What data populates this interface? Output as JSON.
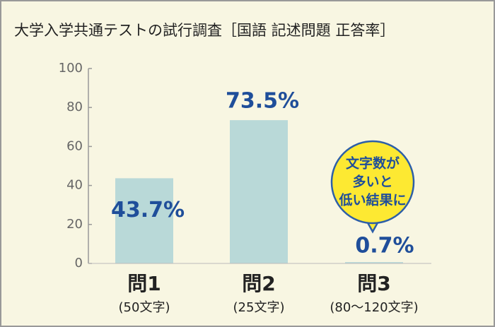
{
  "chart_data": {
    "type": "bar",
    "title": "大学入学共通テストの試行調査［国語 記述問題 正答率］",
    "categories": [
      "問1",
      "問2",
      "問3"
    ],
    "subcategories": [
      "(50文字)",
      "(25文字)",
      "(80〜120文字)"
    ],
    "values": [
      43.7,
      73.5,
      0.7
    ],
    "value_labels": [
      "43.7%",
      "73.5%",
      "0.7%"
    ],
    "color": "#b9d9d8",
    "ylim": [
      0,
      100
    ],
    "yticks": [
      0,
      20,
      40,
      60,
      80,
      100
    ],
    "annotation": [
      "文字数が",
      "多いと",
      "低い結果に"
    ]
  }
}
